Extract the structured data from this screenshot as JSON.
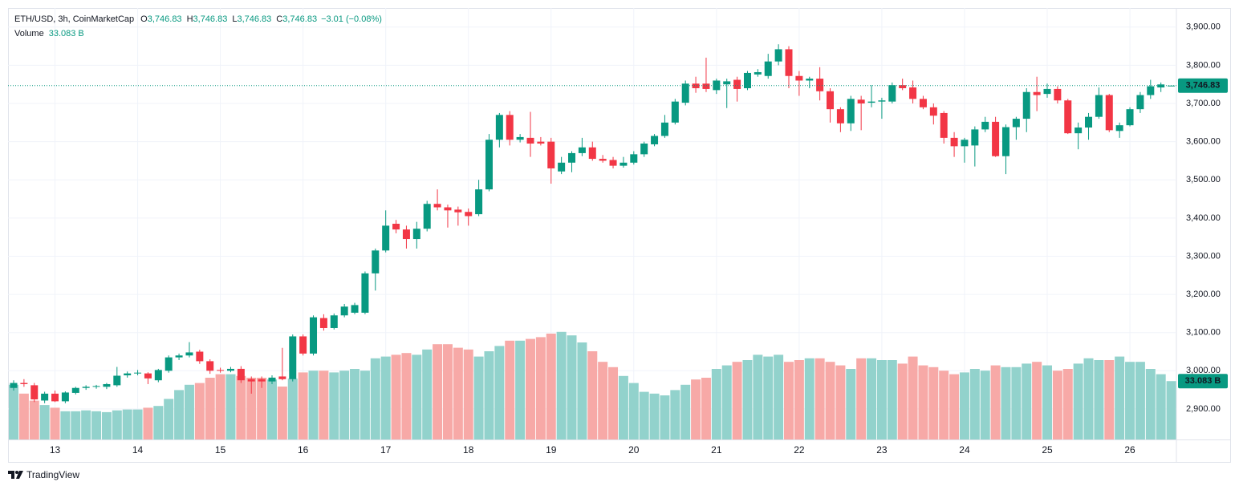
{
  "chart_data": {
    "type": "candlestick",
    "title": "ETH/USD, 3h, CoinMarketCap",
    "legend": [
      {
        "key": "O",
        "value": "3,746.83"
      },
      {
        "key": "H",
        "value": "3,746.83"
      },
      {
        "key": "L",
        "value": "3,746.83"
      },
      {
        "key": "C",
        "value": "3,746.83"
      }
    ],
    "change": "−3.01 (−0.08%)",
    "volume_title": "Volume",
    "volume_label": "33.083 B",
    "last_close_label": "3,746.83",
    "up_color": "#089981",
    "down_color": "#f23645",
    "volume_up_color": "#92d2cc",
    "volume_down_color": "#f7a9a7",
    "categories": [
      null,
      null,
      null,
      null,
      "13",
      null,
      null,
      null,
      null,
      null,
      null,
      null,
      "14",
      null,
      null,
      null,
      null,
      null,
      null,
      null,
      "15",
      null,
      null,
      null,
      null,
      null,
      null,
      null,
      "16",
      null,
      null,
      null,
      null,
      null,
      null,
      null,
      "17",
      null,
      null,
      null,
      null,
      null,
      null,
      null,
      "18",
      null,
      null,
      null,
      null,
      null,
      null,
      null,
      "19",
      null,
      null,
      null,
      null,
      null,
      null,
      null,
      "20",
      null,
      null,
      null,
      null,
      null,
      null,
      null,
      "21",
      null,
      null,
      null,
      null,
      null,
      null,
      null,
      "22",
      null,
      null,
      null,
      null,
      null,
      null,
      null,
      "23",
      null,
      null,
      null,
      null,
      null,
      null,
      null,
      "24",
      null,
      null,
      null,
      null,
      null,
      null,
      null,
      "25",
      null,
      null,
      null,
      null,
      null,
      null,
      null,
      "26",
      null,
      null,
      null,
      null
    ],
    "open": [
      2955,
      2968,
      2962,
      2922,
      2940,
      2920,
      2942,
      2955,
      2958,
      2958,
      2962,
      2988,
      2993,
      2993,
      2975,
      3000,
      3035,
      3040,
      3050,
      3025,
      3002,
      3000,
      3005,
      2978,
      2978,
      2972,
      2985,
      2978,
      3090,
      3045,
      3138,
      3112,
      3145,
      3152,
      3152,
      3255,
      3315,
      3385,
      3370,
      3345,
      3372,
      3437,
      3428,
      3422,
      3416,
      3410,
      3475,
      3605,
      3670,
      3605,
      3610,
      3600,
      3600,
      3522,
      3545,
      3570,
      3585,
      3555,
      3552,
      3537,
      3545,
      3567,
      3593,
      3615,
      3650,
      3702,
      3752,
      3752,
      3735,
      3750,
      3762,
      3740,
      3776,
      3772,
      3810,
      3842,
      3772,
      3760,
      3765,
      3732,
      3685,
      3648,
      3710,
      3702,
      3705,
      3705,
      3748,
      3742,
      3712,
      3690,
      3675,
      3610,
      3588,
      3590,
      3632,
      3652,
      3562,
      3638,
      3660,
      3730,
      3725,
      3738,
      3708,
      3622,
      3637,
      3665,
      3722,
      3628,
      3643,
      3685,
      3722,
      3742,
      3746.83
    ],
    "high": [
      2975,
      2978,
      2968,
      2945,
      2948,
      2946,
      2958,
      2962,
      2963,
      2968,
      3010,
      2998,
      3002,
      2996,
      3005,
      3040,
      3045,
      3075,
      3055,
      3030,
      3008,
      3010,
      3012,
      2985,
      2985,
      2988,
      3060,
      3095,
      3095,
      3145,
      3148,
      3150,
      3175,
      3178,
      3260,
      3320,
      3420,
      3395,
      3380,
      3390,
      3445,
      3475,
      3435,
      3430,
      3425,
      3500,
      3620,
      3675,
      3680,
      3620,
      3678,
      3612,
      3610,
      3560,
      3575,
      3610,
      3600,
      3565,
      3560,
      3560,
      3575,
      3600,
      3620,
      3670,
      3712,
      3760,
      3770,
      3820,
      3765,
      3765,
      3770,
      3785,
      3790,
      3830,
      3855,
      3850,
      3785,
      3770,
      3795,
      3740,
      3690,
      3720,
      3720,
      3748,
      3715,
      3755,
      3765,
      3760,
      3720,
      3700,
      3680,
      3625,
      3610,
      3640,
      3665,
      3665,
      3645,
      3665,
      3740,
      3770,
      3752,
      3745,
      3712,
      3650,
      3675,
      3742,
      3725,
      3650,
      3690,
      3730,
      3762,
      3755,
      3746.83
    ],
    "low": [
      2948,
      2958,
      2918,
      2915,
      2918,
      2915,
      2938,
      2950,
      2953,
      2952,
      2958,
      2982,
      2988,
      2965,
      2970,
      2995,
      3028,
      3035,
      3018,
      2992,
      2995,
      2996,
      2968,
      2940,
      2955,
      2965,
      2975,
      2972,
      3040,
      3040,
      3105,
      3108,
      3140,
      3148,
      3148,
      3210,
      3310,
      3360,
      3320,
      3320,
      3365,
      3420,
      3375,
      3380,
      3380,
      3405,
      3470,
      3585,
      3590,
      3598,
      3560,
      3590,
      3490,
      3515,
      3520,
      3562,
      3550,
      3545,
      3530,
      3532,
      3540,
      3560,
      3588,
      3610,
      3645,
      3695,
      3728,
      3730,
      3725,
      3688,
      3705,
      3735,
      3770,
      3765,
      3800,
      3740,
      3720,
      3740,
      3708,
      3650,
      3625,
      3628,
      3630,
      3690,
      3660,
      3700,
      3735,
      3700,
      3685,
      3645,
      3595,
      3560,
      3545,
      3535,
      3625,
      3560,
      3515,
      3605,
      3625,
      3680,
      3715,
      3700,
      3620,
      3580,
      3605,
      3660,
      3625,
      3610,
      3640,
      3675,
      3712,
      3730,
      3746.83
    ],
    "close": [
      2968,
      2965,
      2925,
      2940,
      2920,
      2943,
      2955,
      2958,
      2960,
      2965,
      2987,
      2993,
      2995,
      2980,
      3002,
      3035,
      3040,
      3048,
      3025,
      3000,
      3000,
      3005,
      2975,
      2972,
      2972,
      2982,
      2978,
      3090,
      3045,
      3140,
      3112,
      3145,
      3168,
      3172,
      3255,
      3315,
      3380,
      3370,
      3345,
      3372,
      3437,
      3428,
      3420,
      3415,
      3405,
      3475,
      3605,
      3670,
      3605,
      3612,
      3595,
      3595,
      3530,
      3545,
      3570,
      3585,
      3555,
      3550,
      3537,
      3545,
      3567,
      3595,
      3615,
      3650,
      3705,
      3752,
      3740,
      3738,
      3760,
      3758,
      3738,
      3780,
      3782,
      3810,
      3842,
      3772,
      3760,
      3765,
      3732,
      3685,
      3648,
      3712,
      3700,
      3705,
      3708,
      3748,
      3740,
      3712,
      3690,
      3668,
      3610,
      3588,
      3605,
      3632,
      3652,
      3562,
      3638,
      3660,
      3730,
      3722,
      3738,
      3708,
      3622,
      3637,
      3665,
      3722,
      3630,
      3643,
      3685,
      3722,
      3745,
      3749.84,
      3746.83
    ],
    "volume": [
      31,
      26,
      22,
      19.5,
      18,
      16,
      16,
      16.5,
      16,
      15.5,
      16.5,
      17,
      17,
      18,
      19,
      23,
      28,
      31,
      32,
      35,
      37,
      37,
      36,
      35,
      35,
      34,
      30,
      34.5,
      38,
      39,
      39,
      38,
      39,
      40,
      39,
      46,
      47,
      48,
      49,
      48,
      51,
      54,
      54,
      52,
      51,
      47,
      50,
      53,
      56,
      56,
      57,
      58,
      60,
      61,
      59,
      55,
      50,
      44,
      41,
      36,
      32,
      27,
      26,
      25,
      28,
      31,
      34,
      35,
      40,
      42,
      44,
      45,
      48,
      47,
      48,
      44,
      45,
      46,
      46,
      44,
      42,
      40,
      46,
      46,
      45,
      45,
      43,
      47,
      42,
      41,
      39,
      37,
      38,
      40,
      39,
      42,
      41,
      41,
      43,
      44,
      42,
      39,
      40,
      43,
      46,
      45,
      45,
      47,
      44,
      44,
      40,
      37,
      33.083
    ],
    "ylim": [
      2820,
      3950
    ],
    "yticks": [
      {
        "value": 2900,
        "label": "2,900.00"
      },
      {
        "value": 3000,
        "label": "3,000.00"
      },
      {
        "value": 3100,
        "label": "3,100.00"
      },
      {
        "value": 3200,
        "label": "3,200.00"
      },
      {
        "value": 3300,
        "label": "3,300.00"
      },
      {
        "value": 3400,
        "label": "3,400.00"
      },
      {
        "value": 3500,
        "label": "3,500.00"
      },
      {
        "value": 3600,
        "label": "3,600.00"
      },
      {
        "value": 3700,
        "label": "3,700.00"
      },
      {
        "value": 3800,
        "label": "3,800.00"
      },
      {
        "value": 3900,
        "label": "3,900.00"
      }
    ],
    "grid": true
  },
  "brand": "TradingView"
}
